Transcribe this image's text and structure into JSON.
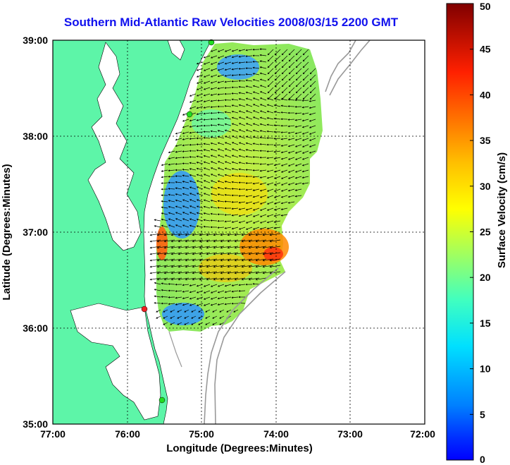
{
  "title": "Southern Mid-Atlantic Raw Velocities 2008/03/15 2200 GMT",
  "axes": {
    "xlabel": "Longitude (Degrees:Minutes)",
    "ylabel": "Latitude (Degrees:Minutes)",
    "x_ticks": [
      "77:00",
      "76:00",
      "75:00",
      "74:00",
      "73:00",
      "72:00"
    ],
    "y_ticks": [
      "39:00",
      "38:00",
      "37:00",
      "36:00",
      "35:00"
    ]
  },
  "colorbar": {
    "label": "Surface Velocity (cm/s)",
    "ticks": [
      "50",
      "45",
      "40",
      "35",
      "30",
      "25",
      "20",
      "15",
      "10",
      "5",
      "0"
    ],
    "range": [
      0,
      50
    ],
    "colormap": "jet"
  },
  "chart_data": {
    "type": "heatmap",
    "title": "Southern Mid-Atlantic Raw Velocities 2008/03/15 2200 GMT",
    "xlabel": "Longitude (Degrees:Minutes)",
    "ylabel": "Latitude (Degrees:Minutes)",
    "xlim": [
      "77:00 W",
      "72:00 W"
    ],
    "ylim": [
      "35:00 N",
      "39:00 N"
    ],
    "value_label": "Surface Velocity (cm/s)",
    "value_range": [
      0,
      50
    ],
    "grid": true,
    "colors": {
      "land": "#5df5a8",
      "title": "#1010ee",
      "station_green": "#22dd22",
      "station_red": "#ee2222"
    }
  }
}
